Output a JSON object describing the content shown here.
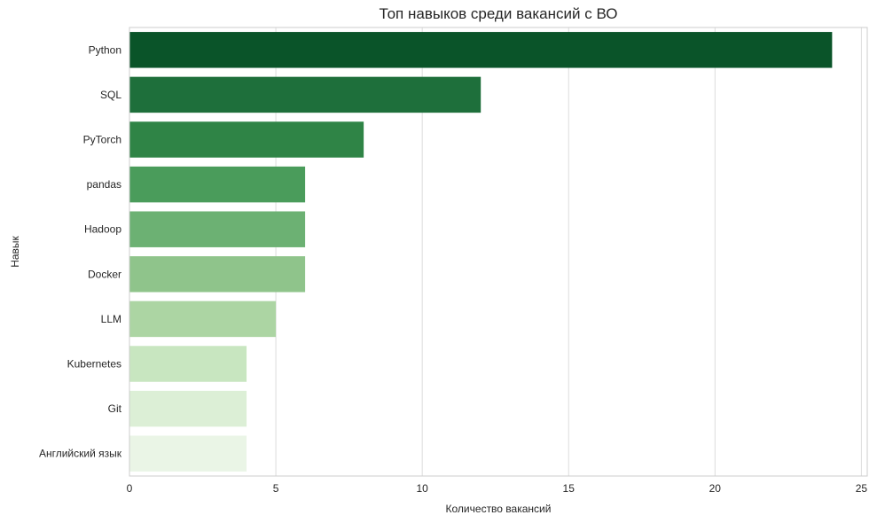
{
  "chart_data": {
    "type": "bar",
    "orientation": "horizontal",
    "title": "Топ навыков среди вакансий с ВО",
    "xlabel": "Количество вакансий",
    "ylabel": "Навык",
    "categories": [
      "Python",
      "SQL",
      "PyTorch",
      "pandas",
      "Hadoop",
      "Docker",
      "LLM",
      "Kubernetes",
      "Git",
      "Английский язык"
    ],
    "values": [
      24,
      12,
      8,
      6,
      6,
      6,
      5,
      4,
      4,
      4
    ],
    "colors": [
      "#0a5429",
      "#1e6f3b",
      "#2f8446",
      "#4a9c5b",
      "#6cb173",
      "#8fc48b",
      "#acd5a3",
      "#c8e6c0",
      "#dcefd6",
      "#eaf5e6"
    ],
    "xlim": [
      0,
      25.2
    ],
    "xticks": [
      0,
      5,
      10,
      15,
      20,
      25
    ],
    "grid": true
  }
}
